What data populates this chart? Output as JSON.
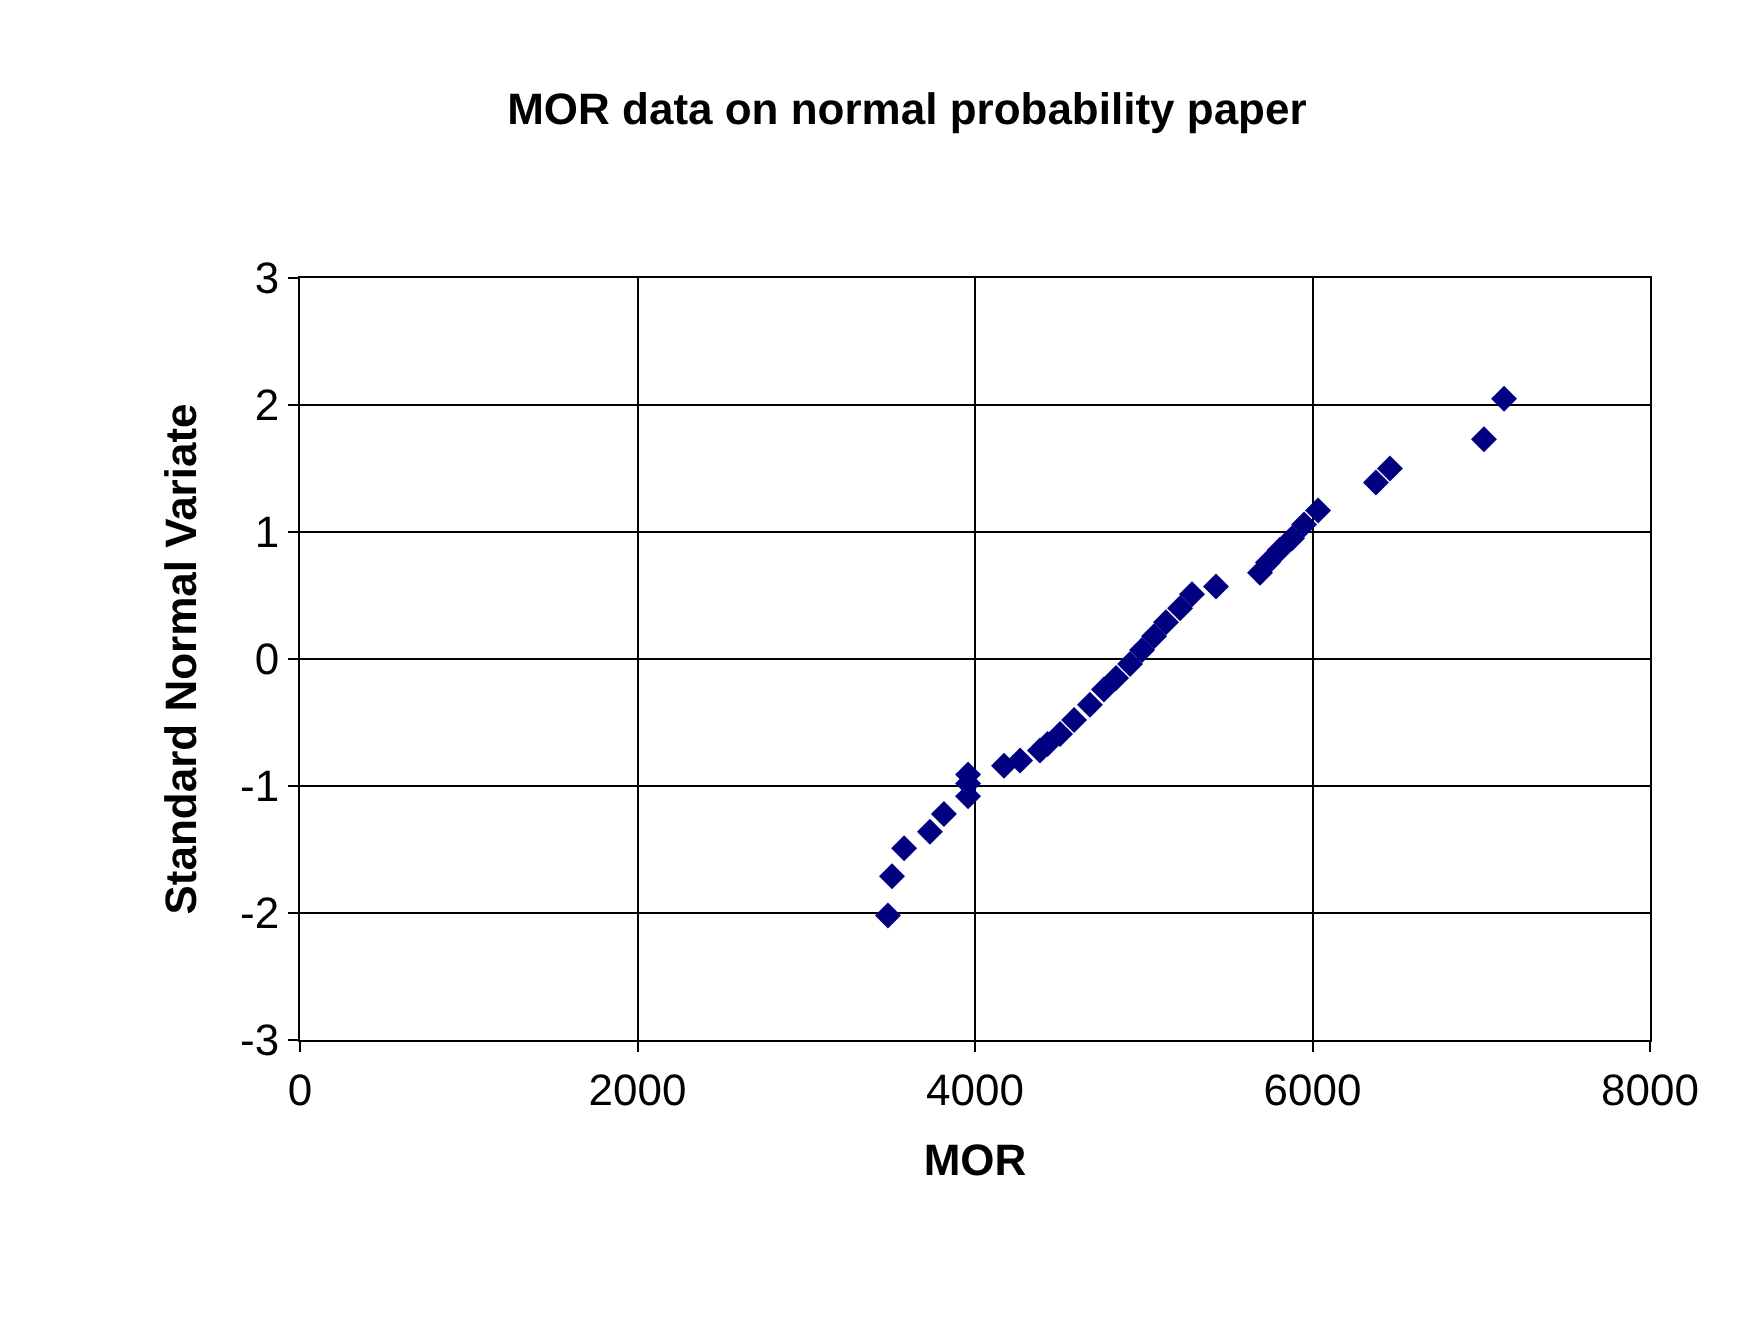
{
  "chart_data": {
    "type": "scatter",
    "title": "MOR data on normal probability paper",
    "xlabel": "MOR",
    "ylabel": "Standard Normal Variate",
    "x": [
      3484,
      3508,
      3580,
      3733,
      3816,
      3959,
      3959,
      3959,
      4172,
      4267,
      4385,
      4430,
      4504,
      4587,
      4681,
      4764,
      4836,
      4919,
      4990,
      5061,
      5132,
      5215,
      5286,
      5428,
      5689,
      5736,
      5807,
      5879,
      5950,
      6033,
      6376,
      6459,
      7016,
      7135
    ],
    "series": [
      {
        "color": "#000080",
        "values": [
          -2.02,
          -1.71,
          -1.49,
          -1.36,
          -1.22,
          -1.08,
          -0.98,
          -0.91,
          -0.84,
          -0.8,
          -0.72,
          -0.67,
          -0.59,
          -0.48,
          -0.36,
          -0.24,
          -0.15,
          -0.04,
          0.07,
          0.18,
          0.29,
          0.4,
          0.51,
          0.57,
          0.68,
          0.76,
          0.86,
          0.95,
          1.06,
          1.17,
          1.39,
          1.5,
          1.73,
          2.05
        ]
      }
    ],
    "xlim": [
      0,
      8000
    ],
    "xticks": [
      0,
      2000,
      4000,
      6000,
      8000
    ],
    "ylim": [
      -3,
      3
    ],
    "yticks": [
      -3,
      -2,
      -1,
      0,
      1,
      2,
      3
    ],
    "grid": true,
    "marker": "diamond"
  }
}
